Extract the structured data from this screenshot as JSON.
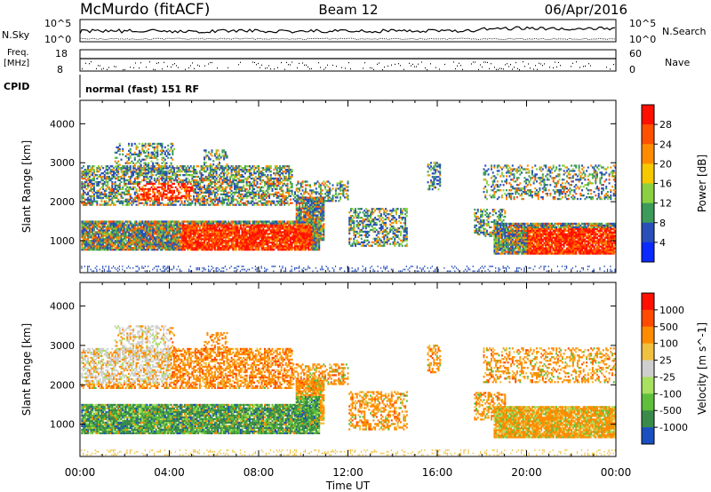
{
  "header": {
    "station": "McMurdo (fitACF)",
    "beam": "Beam 12",
    "date": "06/Apr/2016"
  },
  "summary_labels": {
    "nsky": "N.Sky",
    "nsearch": "N.Search",
    "freq_line1": "Freq.",
    "freq_line2": "[MHz]",
    "nave": "Nave",
    "cpid": "CPID",
    "cpid_text": "normal (fast) 151 RF"
  },
  "summary_ticks": {
    "noise_left": [
      "10^5",
      "10^0"
    ],
    "noise_right": [
      "10^5",
      "10^0"
    ],
    "freq_left": [
      "18",
      "8"
    ],
    "freq_right": [
      "60",
      "0"
    ]
  },
  "chart_data": [
    {
      "type": "heatmap",
      "name": "power",
      "ylabel": "Slant Range [km]",
      "xlabel": "",
      "xlim": [
        0,
        24
      ],
      "ylim": [
        180,
        4600
      ],
      "yticks": [
        1000,
        2000,
        3000,
        4000
      ],
      "colorbar_label": "Power [dB]",
      "colorbar_ticks": [
        "4",
        "8",
        "12",
        "16",
        "20",
        "24",
        "28"
      ],
      "colors": [
        "#0a2aff",
        "#2850b8",
        "#3c9a5a",
        "#8ad040",
        "#f6c800",
        "#ff8c00",
        "#ff5000",
        "#ff1000"
      ]
    },
    {
      "type": "heatmap",
      "name": "velocity",
      "ylabel": "Slant Range [km]",
      "xlabel": "Time UT",
      "xlim": [
        0,
        24
      ],
      "ylim": [
        180,
        4600
      ],
      "yticks": [
        1000,
        2000,
        3000,
        4000
      ],
      "xticks": [
        "00:00",
        "04:00",
        "08:00",
        "12:00",
        "16:00",
        "20:00",
        "00:00"
      ],
      "colorbar_label": "Velocity [m s^-1]",
      "colorbar_ticks": [
        "1000",
        "500",
        "100",
        "25",
        "-25",
        "-100",
        "-500",
        "-1000"
      ],
      "colors": [
        "#1b4fc0",
        "#3a8a4a",
        "#5fbf3a",
        "#a8e060",
        "#cfcfcf",
        "#f0c040",
        "#ff8c00",
        "#ff4a00",
        "#ff1000"
      ]
    }
  ]
}
